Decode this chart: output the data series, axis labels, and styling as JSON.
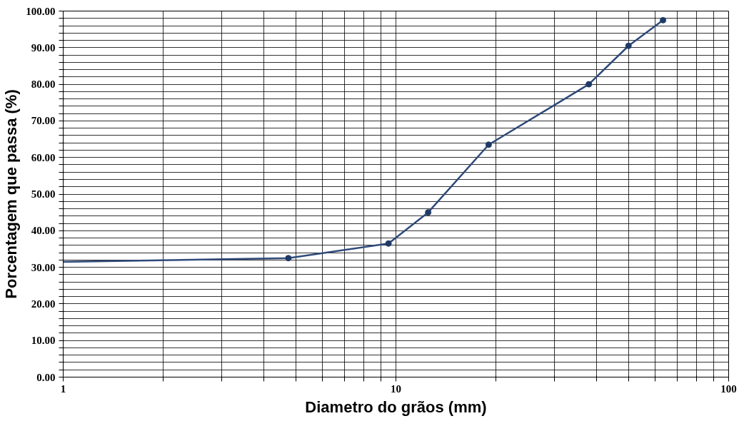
{
  "chart_data": {
    "type": "line",
    "xlabel": "Diametro do grãos (mm)",
    "ylabel": "Porcentagem que passa (%)",
    "log": "x",
    "grid": true,
    "series": [
      {
        "color": "#2f4a7a",
        "marker": "none",
        "x": [
          1,
          4.75,
          9.5,
          12.5,
          19,
          38,
          50,
          63.5
        ],
        "values": [
          31.5,
          32.5,
          36.5,
          45,
          63.5,
          80,
          90.5,
          97.5
        ]
      },
      {
        "type": "scatter",
        "color": "#1f3a66",
        "marker": "circle",
        "x": [
          4.75,
          9.5,
          12.5,
          19,
          38,
          50,
          63.5
        ],
        "values": [
          32.5,
          36.5,
          45,
          63.5,
          80,
          90.5,
          97.5
        ]
      }
    ],
    "xlim": [
      1,
      100
    ],
    "xticks": [
      {
        "value": 1,
        "label": "1"
      },
      {
        "value": 2,
        "label": null
      },
      {
        "value": 3,
        "label": null
      },
      {
        "value": 4,
        "label": null
      },
      {
        "value": 5,
        "label": null
      },
      {
        "value": 6,
        "label": null
      },
      {
        "value": 7,
        "label": null
      },
      {
        "value": 8,
        "label": null
      },
      {
        "value": 9,
        "label": null
      },
      {
        "value": 10,
        "label": "10"
      },
      {
        "value": 20,
        "label": null
      },
      {
        "value": 30,
        "label": null
      },
      {
        "value": 40,
        "label": null
      },
      {
        "value": 50,
        "label": null
      },
      {
        "value": 60,
        "label": null
      },
      {
        "value": 70,
        "label": null
      },
      {
        "value": 80,
        "label": null
      },
      {
        "value": 90,
        "label": null
      },
      {
        "value": 100,
        "label": "100"
      }
    ],
    "ylim": [
      0,
      100
    ],
    "yticks": [
      {
        "value": 0,
        "label": "0.00"
      },
      {
        "value": 2,
        "label": null
      },
      {
        "value": 4,
        "label": null
      },
      {
        "value": 6,
        "label": null
      },
      {
        "value": 8,
        "label": null
      },
      {
        "value": 10,
        "label": "10.00"
      },
      {
        "value": 12,
        "label": null
      },
      {
        "value": 14,
        "label": null
      },
      {
        "value": 16,
        "label": null
      },
      {
        "value": 18,
        "label": null
      },
      {
        "value": 20,
        "label": "20.00"
      },
      {
        "value": 22,
        "label": null
      },
      {
        "value": 24,
        "label": null
      },
      {
        "value": 26,
        "label": null
      },
      {
        "value": 28,
        "label": null
      },
      {
        "value": 30,
        "label": "30.00"
      },
      {
        "value": 32,
        "label": null
      },
      {
        "value": 34,
        "label": null
      },
      {
        "value": 36,
        "label": null
      },
      {
        "value": 38,
        "label": null
      },
      {
        "value": 40,
        "label": "40.00"
      },
      {
        "value": 42,
        "label": null
      },
      {
        "value": 44,
        "label": null
      },
      {
        "value": 46,
        "label": null
      },
      {
        "value": 48,
        "label": null
      },
      {
        "value": 50,
        "label": "50.00"
      },
      {
        "value": 52,
        "label": null
      },
      {
        "value": 54,
        "label": null
      },
      {
        "value": 56,
        "label": null
      },
      {
        "value": 58,
        "label": null
      },
      {
        "value": 60,
        "label": "60.00"
      },
      {
        "value": 62,
        "label": null
      },
      {
        "value": 64,
        "label": null
      },
      {
        "value": 66,
        "label": null
      },
      {
        "value": 68,
        "label": null
      },
      {
        "value": 70,
        "label": "70.00"
      },
      {
        "value": 72,
        "label": null
      },
      {
        "value": 74,
        "label": null
      },
      {
        "value": 76,
        "label": null
      },
      {
        "value": 78,
        "label": null
      },
      {
        "value": 80,
        "label": "80.00"
      },
      {
        "value": 82,
        "label": null
      },
      {
        "value": 84,
        "label": null
      },
      {
        "value": 86,
        "label": null
      },
      {
        "value": 88,
        "label": null
      },
      {
        "value": 90,
        "label": "90.00"
      },
      {
        "value": 92,
        "label": null
      },
      {
        "value": 94,
        "label": null
      },
      {
        "value": 96,
        "label": null
      },
      {
        "value": 98,
        "label": null
      },
      {
        "value": 100,
        "label": "100.00"
      }
    ]
  }
}
